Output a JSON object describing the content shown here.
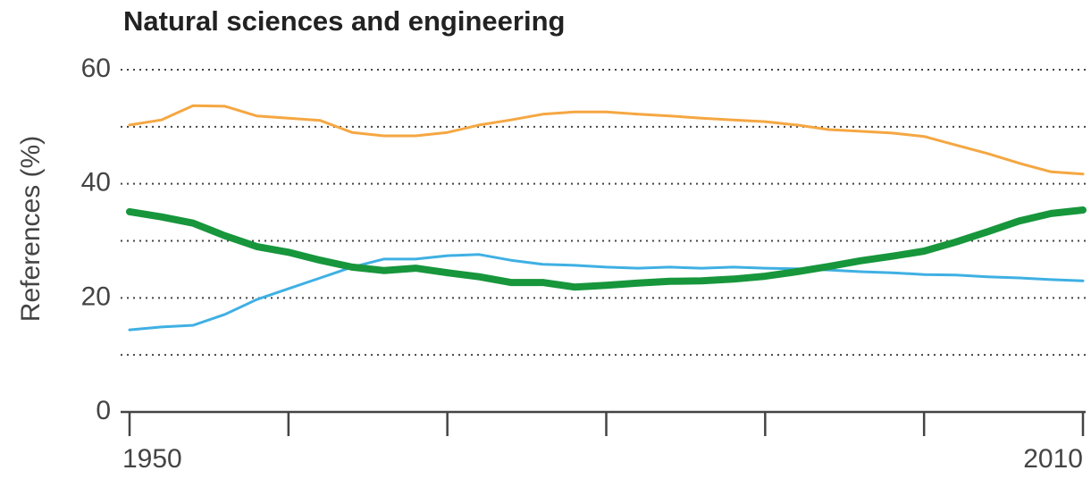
{
  "chart_data": {
    "type": "line",
    "title": "Natural sciences and engineering",
    "y_label": "References (%)",
    "x": [
      1950,
      1952,
      1954,
      1956,
      1958,
      1960,
      1962,
      1964,
      1966,
      1968,
      1970,
      1972,
      1974,
      1976,
      1978,
      1980,
      1982,
      1984,
      1986,
      1988,
      1990,
      1992,
      1994,
      1996,
      1998,
      2000,
      2002,
      2004,
      2006,
      2008,
      2010
    ],
    "series": [
      {
        "color": "#f5a742",
        "width": 3,
        "values": [
          50.3,
          51.2,
          53.7,
          53.6,
          51.9,
          51.5,
          51.1,
          49.0,
          48.4,
          48.4,
          49.0,
          50.3,
          51.2,
          52.2,
          52.6,
          52.6,
          52.2,
          51.9,
          51.5,
          51.2,
          50.9,
          50.3,
          49.5,
          49.2,
          48.9,
          48.3,
          46.8,
          45.3,
          43.6,
          42.1,
          41.7
        ]
      },
      {
        "color": "#3fb0e3",
        "width": 3,
        "values": [
          14.4,
          14.9,
          15.2,
          17.1,
          19.7,
          21.6,
          23.5,
          25.4,
          26.8,
          26.8,
          27.4,
          27.6,
          26.6,
          25.9,
          25.7,
          25.4,
          25.2,
          25.4,
          25.2,
          25.4,
          25.2,
          25.1,
          24.9,
          24.6,
          24.4,
          24.1,
          24.0,
          23.7,
          23.5,
          23.2,
          23.0
        ]
      },
      {
        "color": "#17963c",
        "width": 8,
        "values": [
          35.1,
          34.2,
          33.1,
          30.9,
          29.0,
          28.0,
          26.6,
          25.4,
          24.8,
          25.2,
          24.4,
          23.7,
          22.7,
          22.7,
          21.9,
          22.2,
          22.6,
          22.9,
          23.0,
          23.3,
          23.8,
          24.6,
          25.5,
          26.5,
          27.3,
          28.2,
          29.8,
          31.6,
          33.5,
          34.8,
          35.4
        ]
      }
    ],
    "xlim": [
      1950,
      2010
    ],
    "xticks": [
      1950,
      2010
    ],
    "xminor": [
      1960,
      1970,
      1980,
      1990,
      2000
    ],
    "ylim": [
      0,
      60
    ],
    "yticks": [
      0,
      20,
      40,
      60
    ],
    "yminor": [
      10,
      30,
      50
    ],
    "grid": true
  }
}
